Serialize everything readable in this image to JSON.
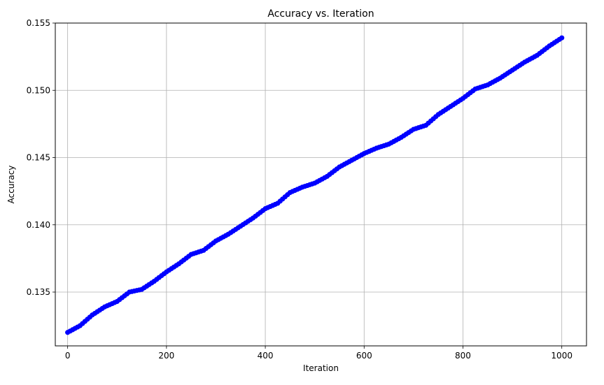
{
  "chart_data": {
    "type": "line",
    "title": "Accuracy vs. Iteration",
    "xlabel": "Iteration",
    "ylabel": "Accuracy",
    "xlim": [
      -25,
      1050
    ],
    "ylim": [
      0.131,
      0.155
    ],
    "xticks": [
      0,
      200,
      400,
      600,
      800,
      1000
    ],
    "xtick_labels": [
      "0",
      "200",
      "400",
      "600",
      "800",
      "1000"
    ],
    "yticks": [
      0.135,
      0.14,
      0.145,
      0.15,
      0.155
    ],
    "ytick_labels": [
      "0.135",
      "0.140",
      "0.145",
      "0.150",
      "0.155"
    ],
    "grid": true,
    "line_color": "#0000ff",
    "marker": "circle",
    "series": [
      {
        "x": [
          0,
          25,
          50,
          75,
          100,
          125,
          150,
          175,
          200,
          225,
          250,
          275,
          300,
          325,
          350,
          375,
          400,
          425,
          450,
          475,
          500,
          525,
          550,
          575,
          600,
          625,
          650,
          675,
          700,
          725,
          750,
          775,
          800,
          825,
          850,
          875,
          900,
          925,
          950,
          975,
          1000
        ],
        "y": [
          0.132,
          0.1325,
          0.1333,
          0.1339,
          0.1343,
          0.135,
          0.1352,
          0.1358,
          0.1365,
          0.1371,
          0.1378,
          0.1381,
          0.1388,
          0.1393,
          0.1399,
          0.1405,
          0.1412,
          0.1416,
          0.1424,
          0.1428,
          0.1431,
          0.1436,
          0.1443,
          0.1448,
          0.1453,
          0.1457,
          0.146,
          0.1465,
          0.1471,
          0.1474,
          0.1482,
          0.1488,
          0.1494,
          0.1501,
          0.1504,
          0.1509,
          0.1515,
          0.1521,
          0.1526,
          0.1533,
          0.1539
        ]
      }
    ]
  }
}
